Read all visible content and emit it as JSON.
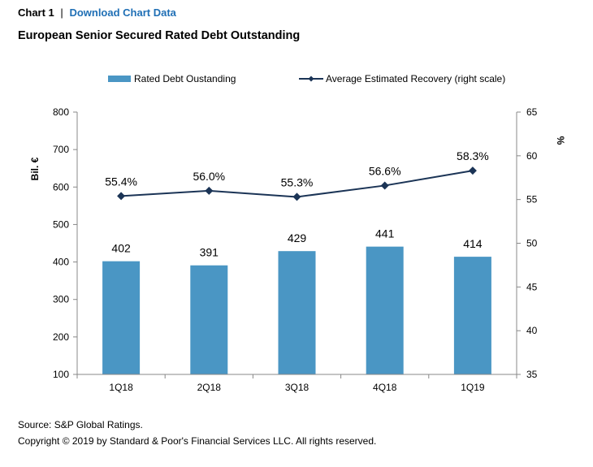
{
  "header": {
    "chart_label": "Chart 1",
    "separator": "|",
    "download_link": "Download Chart Data"
  },
  "title": "European Senior Secured Rated Debt Outstanding",
  "footer": {
    "source": "Source: S&P Global Ratings.",
    "copyright": "Copyright © 2019 by Standard & Poor's Financial Services LLC. All rights reserved."
  },
  "chart_data": {
    "type": "bar",
    "categories": [
      "1Q18",
      "2Q18",
      "3Q18",
      "4Q18",
      "1Q19"
    ],
    "ylabel": "Bil. €",
    "y2label": "%",
    "ylim": [
      100,
      800
    ],
    "yticks": [
      100,
      200,
      300,
      400,
      500,
      600,
      700,
      800
    ],
    "y2lim": [
      35,
      65
    ],
    "y2ticks": [
      35,
      40,
      45,
      50,
      55,
      60,
      65
    ],
    "grid": false,
    "legend_position": "top",
    "series": [
      {
        "name": "Rated Debt Oustanding",
        "type": "bar",
        "axis": "left",
        "color": "#4a96c4",
        "values": [
          402,
          391,
          429,
          441,
          414
        ],
        "labels": [
          "402",
          "391",
          "429",
          "441",
          "414"
        ]
      },
      {
        "name": "Average Estimated Recovery (right scale)",
        "type": "line",
        "axis": "right",
        "color": "#1b3456",
        "marker": "diamond",
        "values": [
          55.4,
          56.0,
          55.3,
          56.6,
          58.3
        ],
        "labels": [
          "55.4%",
          "56.0%",
          "55.3%",
          "56.6%",
          "58.3%"
        ]
      }
    ]
  }
}
